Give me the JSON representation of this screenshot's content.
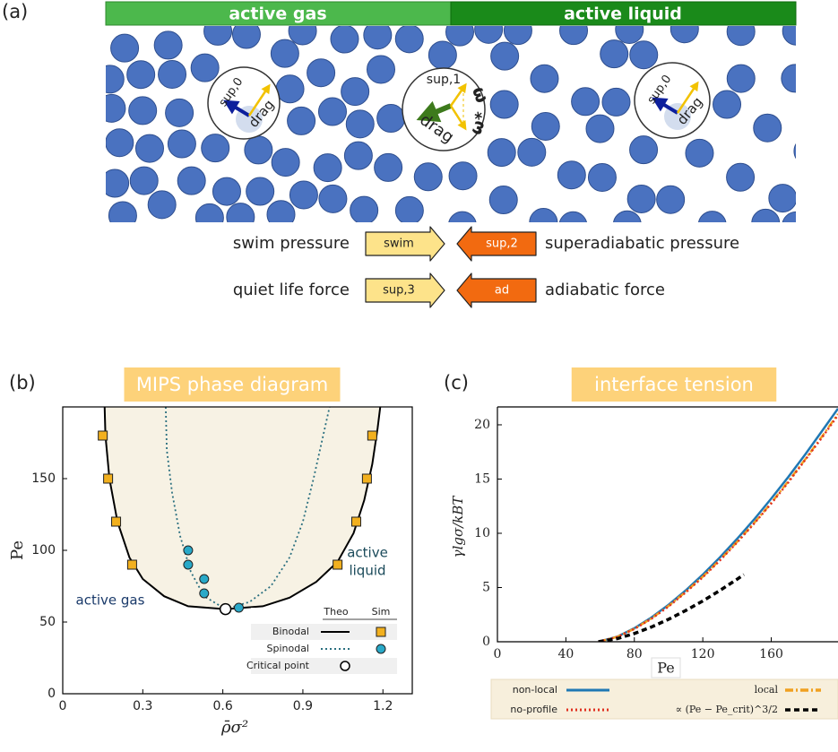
{
  "panel_a": {
    "label": "(a)",
    "gas_label": "active gas",
    "liquid_label": "active liquid",
    "particles": [
      {
        "labels": [
          "sup,0",
          "drag"
        ]
      },
      {
        "labels": [
          "sup,1",
          "ω",
          "drag",
          "ω*"
        ]
      },
      {
        "labels": [
          "sup,0",
          "drag"
        ]
      }
    ],
    "legend": [
      {
        "text": "swim pressure",
        "arrow": "swim"
      },
      {
        "text": "superadiabatic pressure",
        "arrow": "sup,2"
      },
      {
        "text": "quiet life force",
        "arrow": "sup,3"
      },
      {
        "text": "adiabatic force",
        "arrow": "ad"
      }
    ]
  },
  "chart_data": [
    {
      "type": "phase",
      "panel_label": "(b)",
      "title": "MIPS phase diagram",
      "xlabel": "ρ̄σ²",
      "ylabel": "Pe",
      "xlim": [
        0,
        1.31
      ],
      "ylim": [
        0,
        200
      ],
      "xticks": [
        0,
        0.3,
        0.6,
        0.9,
        1.2
      ],
      "yticks": [
        0,
        50,
        100,
        150
      ],
      "fill": "#f7f2e4",
      "legend_columns": [
        "Theo",
        "Sim"
      ],
      "annotations": [
        "active gas",
        [
          "active",
          "liquid"
        ]
      ],
      "series": [
        {
          "name": "Binodal",
          "color": "#000000",
          "dash": "solid",
          "x": [
            0.157,
            0.16,
            0.175,
            0.205,
            0.25,
            0.3,
            0.38,
            0.47,
            0.61,
            0.75,
            0.85,
            0.95,
            1.03,
            1.09,
            1.13,
            1.16,
            1.18,
            1.19
          ],
          "values": [
            200,
            180,
            150,
            120,
            95,
            80,
            68,
            61,
            59,
            61,
            67,
            78,
            92,
            112,
            135,
            160,
            185,
            200
          ],
          "sim_marker": "square",
          "sim_color": "#f2b01e",
          "sim_x": [
            0.15,
            0.17,
            0.2,
            0.26,
            1.03,
            1.1,
            1.14,
            1.16
          ],
          "sim_values": [
            180,
            150,
            120,
            90,
            90,
            120,
            150,
            180
          ]
        },
        {
          "name": "Spinodal",
          "color": "#2a6f7f",
          "dash": "dotted",
          "x": [
            0.386,
            0.39,
            0.41,
            0.44,
            0.48,
            0.53,
            0.61,
            0.7,
            0.78,
            0.85,
            0.9,
            0.94,
            0.97,
            1.0
          ],
          "values": [
            200,
            170,
            140,
            110,
            85,
            68,
            59,
            64,
            75,
            95,
            120,
            150,
            175,
            200
          ],
          "sim_marker": "circle",
          "sim_color": "#29a9c8",
          "sim_x": [
            0.47,
            0.47,
            0.53,
            0.53,
            0.66
          ],
          "sim_values": [
            100,
            90,
            80,
            70,
            60
          ]
        },
        {
          "name": "Critical point",
          "color": "#000000",
          "marker": "circle",
          "x": [
            0.61
          ],
          "values": [
            59
          ]
        }
      ]
    },
    {
      "type": "line",
      "panel_label": "(c)",
      "title": "interface tension",
      "xlabel": "Pe",
      "ylabel": "γlgσ/kBT",
      "xlim": [
        0,
        199
      ],
      "ylim": [
        0,
        21.65
      ],
      "xticks": [
        0,
        40,
        80,
        120,
        160
      ],
      "yticks": [
        0,
        5,
        10,
        15,
        20
      ],
      "series": [
        {
          "name": "non-local",
          "color": "#1f78b4",
          "dash": "solid",
          "x": [
            59,
            70,
            80,
            90,
            100,
            110,
            120,
            130,
            140,
            150,
            160,
            170,
            180,
            190,
            199
          ],
          "values": [
            0,
            0.47,
            1.25,
            2.24,
            3.41,
            4.73,
            6.19,
            7.78,
            9.48,
            11.28,
            13.2,
            15.2,
            17.3,
            19.5,
            21.5
          ]
        },
        {
          "name": "local",
          "color": "#f0a020",
          "dash": "dashdot",
          "x": [
            59,
            70,
            80,
            90,
            100,
            110,
            120,
            130,
            140,
            150,
            160,
            170,
            180,
            190,
            199
          ],
          "values": [
            0,
            0.45,
            1.2,
            2.15,
            3.3,
            4.6,
            6.0,
            7.55,
            9.2,
            10.95,
            12.8,
            14.8,
            16.85,
            19.0,
            21.0
          ]
        },
        {
          "name": "no-profile",
          "color": "#e03020",
          "dash": "dotted",
          "x": [
            59,
            70,
            80,
            90,
            100,
            110,
            120,
            130,
            140,
            150,
            160,
            170,
            180,
            190,
            199
          ],
          "values": [
            0,
            0.44,
            1.18,
            2.12,
            3.25,
            4.55,
            5.95,
            7.5,
            9.15,
            10.9,
            12.75,
            14.7,
            16.8,
            18.9,
            20.9
          ]
        },
        {
          "name": "∝ (Pe − Pe_crit)^3/2",
          "color": "#000000",
          "dash": "dashed",
          "x": [
            59,
            70,
            80,
            90,
            100,
            110,
            120,
            130,
            140,
            144
          ],
          "values": [
            0,
            0.29,
            0.76,
            1.36,
            2.07,
            2.88,
            3.76,
            4.73,
            5.76,
            6.19
          ]
        }
      ]
    }
  ]
}
